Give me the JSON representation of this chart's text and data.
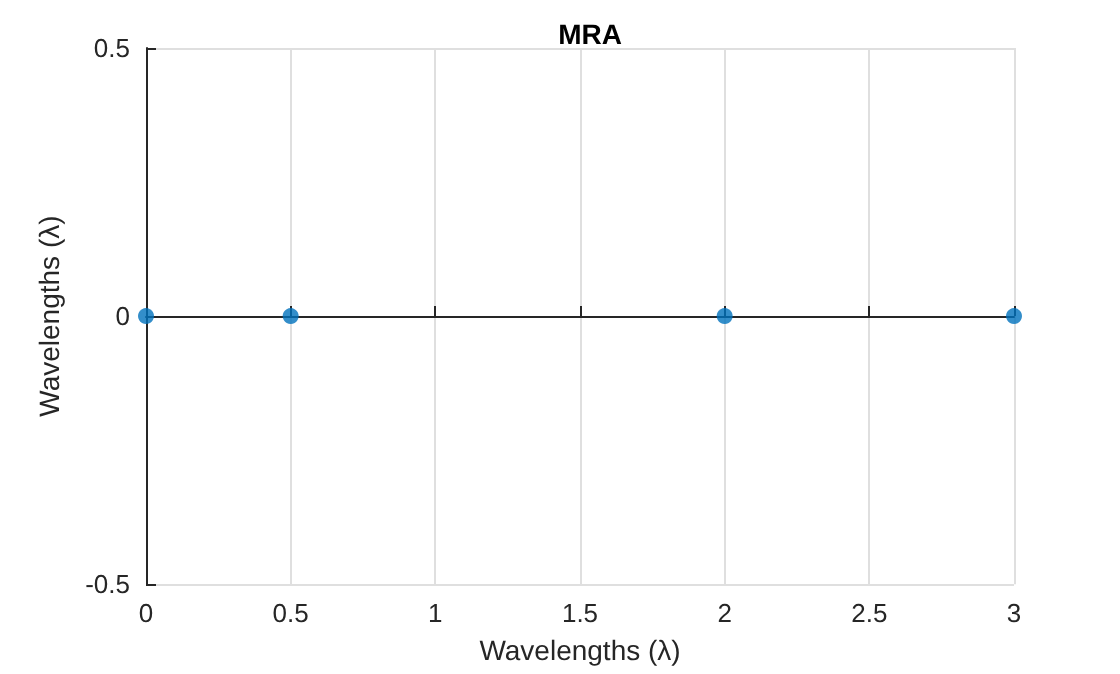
{
  "chart_data": {
    "type": "scatter",
    "title": "MRA",
    "xlabel": "Wavelengths (λ)",
    "ylabel": "Wavelengths (λ)",
    "x": [
      0,
      0.5,
      2,
      3
    ],
    "series": [
      {
        "color": "#0072bd",
        "values": [
          0,
          0,
          0,
          0
        ]
      }
    ],
    "xlim": [
      0,
      3
    ],
    "xticks": [
      0,
      0.5,
      1,
      1.5,
      2,
      2.5,
      3
    ],
    "ylim": [
      -0.5,
      0.5
    ],
    "yticks": [
      -0.5,
      0,
      0.5
    ],
    "grid": true,
    "marker": "circle"
  }
}
